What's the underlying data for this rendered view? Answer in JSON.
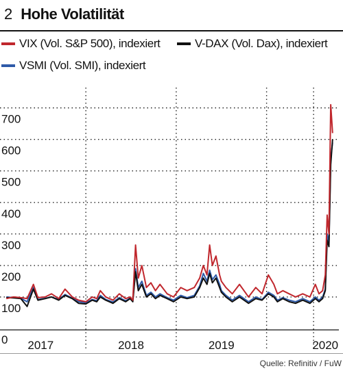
{
  "figure": {
    "number": "2",
    "title": "Hohe Volatilität",
    "source": "Quelle: Refinitiv / FuW"
  },
  "legend": [
    {
      "label": "VIX (Vol. S&P 500), indexiert",
      "color": "#c0272d"
    },
    {
      "label": "V-DAX (Vol. Dax), indexiert",
      "color": "#111111"
    },
    {
      "label": "VSMI (Vol. SMI), indexiert",
      "color": "#2e5aa8"
    }
  ],
  "chart_data": {
    "type": "line",
    "title": "Hohe Volatilität",
    "xlabel": "",
    "ylabel": "",
    "x_tick_labels": [
      "2017",
      "2018",
      "2019",
      "2020"
    ],
    "y_tick_labels": [
      "0",
      "100",
      "200",
      "300",
      "400",
      "500",
      "600",
      "700"
    ],
    "ylim": [
      0,
      760
    ],
    "xlim": [
      2016.55,
      2020.3
    ],
    "grid": true,
    "legend_position": "top",
    "series": [
      {
        "name": "VIX (Vol. S&P 500), indexiert",
        "color": "#c0272d",
        "x": [
          2016.62,
          2016.7,
          2016.78,
          2016.85,
          2016.92,
          2016.97,
          2017.05,
          2017.12,
          2017.2,
          2017.27,
          2017.35,
          2017.42,
          2017.5,
          2017.57,
          2017.62,
          2017.66,
          2017.72,
          2017.8,
          2017.87,
          2017.94,
          2017.99,
          2018.02,
          2018.05,
          2018.08,
          2018.12,
          2018.17,
          2018.22,
          2018.27,
          2018.32,
          2018.4,
          2018.47,
          2018.55,
          2018.62,
          2018.7,
          2018.76,
          2018.8,
          2018.84,
          2018.87,
          2018.9,
          2018.94,
          2018.98,
          2019.0,
          2019.05,
          2019.12,
          2019.2,
          2019.3,
          2019.38,
          2019.45,
          2019.52,
          2019.58,
          2019.62,
          2019.68,
          2019.75,
          2019.82,
          2019.9,
          2019.98,
          2020.04,
          2020.08,
          2020.12,
          2020.15,
          2020.17,
          2020.19,
          2020.21,
          2020.23
        ],
        "values": [
          95,
          100,
          98,
          95,
          140,
          98,
          100,
          110,
          95,
          125,
          100,
          90,
          85,
          100,
          95,
          120,
          100,
          90,
          110,
          95,
          100,
          90,
          265,
          160,
          200,
          130,
          145,
          120,
          140,
          110,
          100,
          130,
          120,
          130,
          160,
          200,
          170,
          265,
          200,
          230,
          170,
          150,
          130,
          110,
          140,
          100,
          130,
          110,
          170,
          140,
          110,
          120,
          110,
          100,
          110,
          100,
          140,
          110,
          120,
          170,
          360,
          300,
          710,
          620
        ]
      },
      {
        "name": "V-DAX (Vol. Dax), indexiert",
        "color": "#111111",
        "x": [
          2016.62,
          2016.7,
          2016.78,
          2016.85,
          2016.92,
          2016.97,
          2017.05,
          2017.12,
          2017.2,
          2017.27,
          2017.35,
          2017.42,
          2017.5,
          2017.57,
          2017.62,
          2017.66,
          2017.72,
          2017.8,
          2017.87,
          2017.94,
          2017.99,
          2018.02,
          2018.05,
          2018.08,
          2018.12,
          2018.17,
          2018.22,
          2018.27,
          2018.32,
          2018.4,
          2018.47,
          2018.55,
          2018.62,
          2018.7,
          2018.76,
          2018.8,
          2018.84,
          2018.87,
          2018.9,
          2018.94,
          2018.98,
          2019.0,
          2019.05,
          2019.12,
          2019.2,
          2019.3,
          2019.38,
          2019.45,
          2019.52,
          2019.58,
          2019.62,
          2019.68,
          2019.75,
          2019.82,
          2019.9,
          2019.98,
          2020.04,
          2020.08,
          2020.12,
          2020.15,
          2020.17,
          2020.19,
          2020.21,
          2020.23
        ],
        "values": [
          98,
          97,
          95,
          70,
          125,
          90,
          95,
          100,
          90,
          105,
          95,
          80,
          78,
          90,
          85,
          100,
          90,
          80,
          95,
          85,
          95,
          85,
          180,
          120,
          140,
          100,
          110,
          95,
          105,
          95,
          85,
          100,
          95,
          100,
          130,
          160,
          140,
          175,
          145,
          160,
          130,
          115,
          100,
          85,
          100,
          80,
          95,
          90,
          110,
          100,
          85,
          95,
          85,
          80,
          90,
          80,
          95,
          85,
          95,
          120,
          280,
          260,
          520,
          600
        ]
      },
      {
        "name": "VSMI (Vol. SMI), indexiert",
        "color": "#2e5aa8",
        "x": [
          2016.62,
          2016.7,
          2016.78,
          2016.85,
          2016.92,
          2016.97,
          2017.05,
          2017.12,
          2017.2,
          2017.27,
          2017.35,
          2017.42,
          2017.5,
          2017.57,
          2017.62,
          2017.66,
          2017.72,
          2017.8,
          2017.87,
          2017.94,
          2017.99,
          2018.02,
          2018.05,
          2018.08,
          2018.12,
          2018.17,
          2018.22,
          2018.27,
          2018.32,
          2018.4,
          2018.47,
          2018.55,
          2018.62,
          2018.7,
          2018.76,
          2018.8,
          2018.84,
          2018.87,
          2018.9,
          2018.94,
          2018.98,
          2019.0,
          2019.05,
          2019.12,
          2019.2,
          2019.3,
          2019.38,
          2019.45,
          2019.52,
          2019.58,
          2019.62,
          2019.68,
          2019.75,
          2019.82,
          2019.9,
          2019.98,
          2020.04,
          2020.08,
          2020.12,
          2020.15,
          2020.17,
          2020.19,
          2020.21,
          2020.23
        ],
        "values": [
          100,
          98,
          96,
          85,
          130,
          92,
          96,
          100,
          92,
          108,
          96,
          85,
          82,
          92,
          88,
          105,
          92,
          84,
          98,
          88,
          96,
          88,
          190,
          130,
          150,
          105,
          115,
          100,
          110,
          98,
          90,
          105,
          98,
          105,
          135,
          175,
          150,
          185,
          155,
          170,
          140,
          120,
          105,
          90,
          105,
          85,
          100,
          92,
          115,
          105,
          90,
          98,
          90,
          85,
          95,
          85,
          100,
          90,
          100,
          125,
          300,
          270,
          540,
          590
        ]
      }
    ]
  }
}
